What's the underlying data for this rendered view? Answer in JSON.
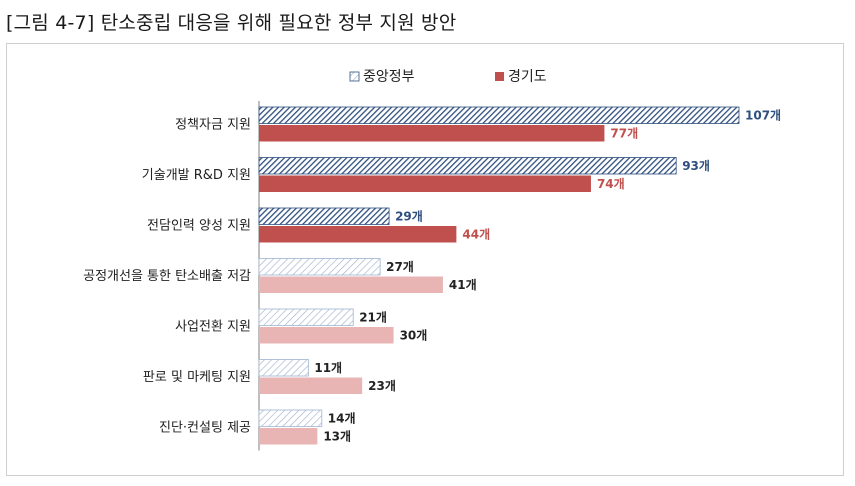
{
  "page_title": "[그림 4-7] 탄소중립 대응을 위해 필요한 정부 지원 방안",
  "chart_data": {
    "type": "bar",
    "orientation": "horizontal",
    "title": "",
    "xlabel": "",
    "ylabel": "",
    "grid": false,
    "legend_position": "top-center",
    "xlim": [
      0,
      107
    ],
    "categories": [
      "정책자금 지원",
      "기술개발 R&D 지원",
      "전담인력 양성 지원",
      "공정개선을 통한 탄소배출 저감",
      "사업전환 지원",
      "판로 및 마케팅 지원",
      "진단·컨설팅 제공"
    ],
    "series": [
      {
        "name": "중앙정부",
        "values": [
          107,
          93,
          29,
          27,
          21,
          11,
          14
        ],
        "value_labels": [
          "107개",
          "93개",
          "29개",
          "27개",
          "21개",
          "11개",
          "14개"
        ],
        "color": "#2f4f7f",
        "pattern": "diagonal-hatch"
      },
      {
        "name": "경기도",
        "values": [
          77,
          74,
          44,
          41,
          30,
          23,
          13
        ],
        "value_labels": [
          "77개",
          "74개",
          "44개",
          "41개",
          "30개",
          "23개",
          "13개"
        ],
        "color": "#c0504d"
      }
    ],
    "emphasis": {
      "highlighted_categories": 3,
      "light_series_colors": [
        "#9fb3d1",
        "#e8b4b4"
      ]
    }
  }
}
